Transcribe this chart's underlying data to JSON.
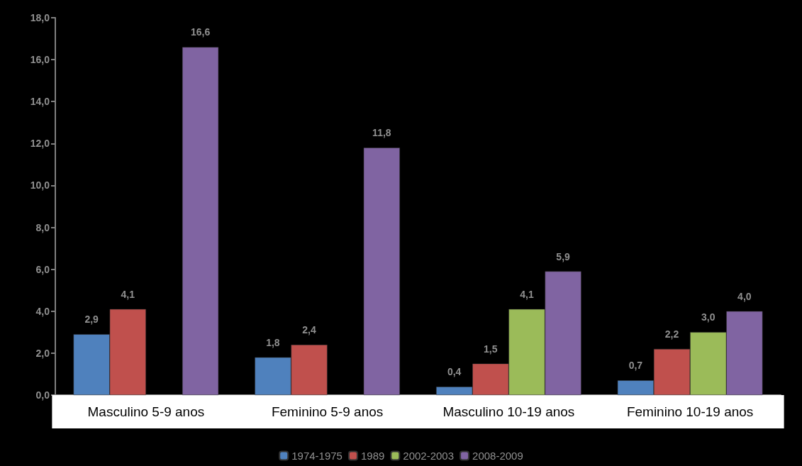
{
  "chart_data": {
    "type": "bar",
    "categories": [
      "Masculino 5-9 anos",
      "Feminino 5-9 anos",
      "Masculino 10-19 anos",
      "Feminino 10-19 anos"
    ],
    "series": [
      {
        "name": "1974-1975",
        "color": "#4f81bd",
        "values": [
          2.9,
          1.8,
          0.4,
          0.7
        ],
        "value_labels": [
          "2,9",
          "1,8",
          "0,4",
          "0,7"
        ]
      },
      {
        "name": "1989",
        "color": "#c0504d",
        "values": [
          4.1,
          2.4,
          1.5,
          2.2
        ],
        "value_labels": [
          "4,1",
          "2,4",
          "1,5",
          "2,2"
        ]
      },
      {
        "name": "2002-2003",
        "color": "#9bbb59",
        "values": [
          null,
          null,
          4.1,
          3.0
        ],
        "value_labels": [
          null,
          null,
          "4,1",
          "3,0"
        ]
      },
      {
        "name": "2008-2009",
        "color": "#8064a2",
        "values": [
          16.6,
          11.8,
          5.9,
          4.0
        ],
        "value_labels": [
          "16,6",
          "11,8",
          "5,9",
          "4,0"
        ]
      }
    ],
    "ylim": [
      0,
      18
    ],
    "yticks": [
      {
        "value": 0,
        "label": "0,0"
      },
      {
        "value": 2,
        "label": "2,0"
      },
      {
        "value": 4,
        "label": "4,0"
      },
      {
        "value": 6,
        "label": "6,0"
      },
      {
        "value": 8,
        "label": "8,0"
      },
      {
        "value": 10,
        "label": "10,0"
      },
      {
        "value": 12,
        "label": "12,0"
      },
      {
        "value": 14,
        "label": "14,0"
      },
      {
        "value": 16,
        "label": "16,0"
      },
      {
        "value": 18,
        "label": "18,0"
      }
    ],
    "grid": false,
    "legend": "bottom"
  }
}
